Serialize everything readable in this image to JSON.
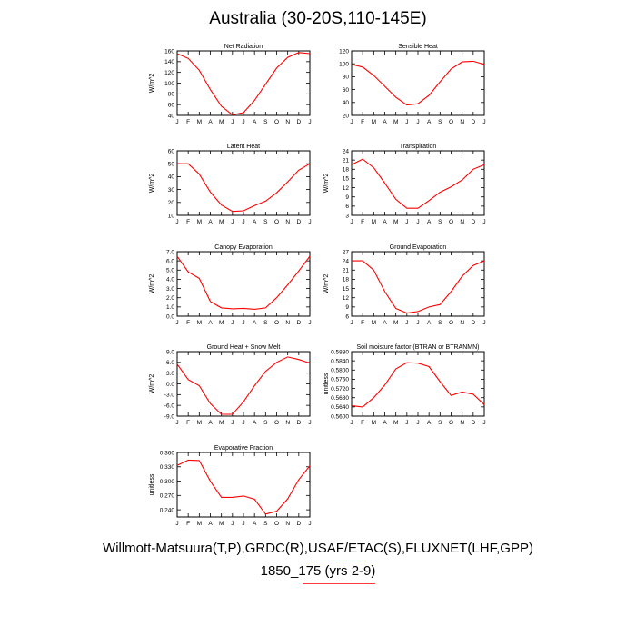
{
  "figure": {
    "title": "Australia (30-20S,110-145E)",
    "footer_line1": "Willmott-Matsuura(T,P),GRDC(R),USAF/ETAC(S),FLUXNET(LHF,GPP)",
    "footer_line2": "1850_175 (yrs 2-9)",
    "line_color": "#ff0000",
    "axis_color": "#000000"
  },
  "chart_data": [
    {
      "type": "line",
      "title": "Net Radiation",
      "ylabel": "W/m^2",
      "x": [
        "J",
        "F",
        "M",
        "A",
        "M",
        "J",
        "J",
        "A",
        "S",
        "O",
        "N",
        "D",
        "J"
      ],
      "yticks": [
        "160",
        "140",
        "120",
        "100",
        "80",
        "60",
        "40"
      ],
      "ylim": [
        40,
        160
      ],
      "values": [
        155,
        146,
        124,
        88,
        57,
        41,
        45,
        68,
        98,
        128,
        148,
        157,
        155
      ]
    },
    {
      "type": "line",
      "title": "Sensible Heat",
      "ylabel": "",
      "x": [
        "J",
        "F",
        "M",
        "A",
        "M",
        "J",
        "J",
        "A",
        "S",
        "O",
        "N",
        "D",
        "J"
      ],
      "yticks": [
        "120",
        "100",
        "80",
        "60",
        "40",
        "20"
      ],
      "ylim": [
        20,
        120
      ],
      "values": [
        99,
        95,
        82,
        65,
        48,
        36,
        38,
        51,
        72,
        92,
        103,
        104,
        99
      ]
    },
    {
      "type": "line",
      "title": "Latent Heat",
      "ylabel": "W/m^2",
      "x": [
        "J",
        "F",
        "M",
        "A",
        "M",
        "J",
        "J",
        "A",
        "S",
        "O",
        "N",
        "D",
        "J"
      ],
      "yticks": [
        "60",
        "50",
        "40",
        "30",
        "20",
        "10"
      ],
      "ylim": [
        10,
        60
      ],
      "values": [
        50,
        50,
        42,
        28,
        18,
        13,
        13.5,
        17.5,
        21,
        27.5,
        36,
        45,
        50
      ]
    },
    {
      "type": "line",
      "title": "Transpiration",
      "ylabel": "W/m^2",
      "x": [
        "J",
        "F",
        "M",
        "A",
        "M",
        "J",
        "J",
        "A",
        "S",
        "O",
        "N",
        "D",
        "J"
      ],
      "yticks": [
        "24",
        "21",
        "18",
        "15",
        "12",
        "9",
        "6",
        "3"
      ],
      "ylim": [
        3,
        24
      ],
      "values": [
        19.5,
        21.3,
        18.5,
        13.5,
        8.2,
        5.3,
        5.3,
        7.8,
        10.5,
        12.3,
        14.5,
        18,
        19.5
      ]
    },
    {
      "type": "line",
      "title": "Canopy Evaporation",
      "ylabel": "W/m^2",
      "x": [
        "J",
        "F",
        "M",
        "A",
        "M",
        "J",
        "J",
        "A",
        "S",
        "O",
        "N",
        "D",
        "J"
      ],
      "yticks": [
        "7.0",
        "6.0",
        "5.0",
        "4.0",
        "3.0",
        "2.0",
        "1.0",
        "0.0"
      ],
      "ylim": [
        0,
        7
      ],
      "values": [
        6.5,
        4.8,
        4.1,
        1.6,
        0.9,
        0.8,
        0.85,
        0.75,
        0.9,
        2.0,
        3.4,
        4.9,
        6.5
      ]
    },
    {
      "type": "line",
      "title": "Ground Evaporation",
      "ylabel": "W/m^2",
      "x": [
        "J",
        "F",
        "M",
        "A",
        "M",
        "J",
        "J",
        "A",
        "S",
        "O",
        "N",
        "D",
        "J"
      ],
      "yticks": [
        "27",
        "24",
        "21",
        "18",
        "15",
        "12",
        "9",
        "6"
      ],
      "ylim": [
        6,
        27
      ],
      "values": [
        24,
        24,
        21,
        14,
        8.5,
        7,
        7.5,
        9,
        9.8,
        14,
        19,
        22.5,
        24
      ]
    },
    {
      "type": "line",
      "title": "Ground Heat + Snow Melt",
      "ylabel": "W/m^2",
      "x": [
        "J",
        "F",
        "M",
        "A",
        "M",
        "J",
        "J",
        "A",
        "S",
        "O",
        "N",
        "D",
        "J"
      ],
      "yticks": [
        "9.0",
        "6.0",
        "3.0",
        "0.0",
        "-3.0",
        "-6.0",
        "-9.0"
      ],
      "ylim": [
        -9,
        9
      ],
      "values": [
        5.5,
        1.2,
        -0.5,
        -5.5,
        -8.5,
        -8.5,
        -5.0,
        -0.5,
        3.5,
        6.0,
        7.5,
        6.8,
        5.8
      ]
    },
    {
      "type": "line",
      "title": "Soil moisture factor (BTRAN or BTRANMN)",
      "ylabel": "unitless",
      "x": [
        "J",
        "F",
        "M",
        "A",
        "M",
        "J",
        "J",
        "A",
        "S",
        "O",
        "N",
        "D",
        "J"
      ],
      "yticks": [
        "0.5880",
        "0.5840",
        "0.5800",
        "0.5760",
        "0.5720",
        "0.5680",
        "0.5640",
        "0.5600"
      ],
      "ylim": [
        0.56,
        0.588
      ],
      "values": [
        0.5645,
        0.564,
        0.568,
        0.5735,
        0.5805,
        0.5832,
        0.583,
        0.5815,
        0.575,
        0.569,
        0.5705,
        0.5695,
        0.565
      ]
    },
    {
      "type": "line",
      "title": "Evaporative Fraction",
      "ylabel": "unitless",
      "x": [
        "J",
        "F",
        "M",
        "A",
        "M",
        "J",
        "J",
        "A",
        "S",
        "O",
        "N",
        "D",
        "J"
      ],
      "yticks": [
        "0.360",
        "0.330",
        "0.300",
        "0.270",
        "0.240"
      ],
      "ylim": [
        0.225,
        0.36
      ],
      "values": [
        0.333,
        0.344,
        0.343,
        0.3,
        0.266,
        0.266,
        0.269,
        0.262,
        0.231,
        0.237,
        0.263,
        0.303,
        0.332
      ]
    }
  ]
}
